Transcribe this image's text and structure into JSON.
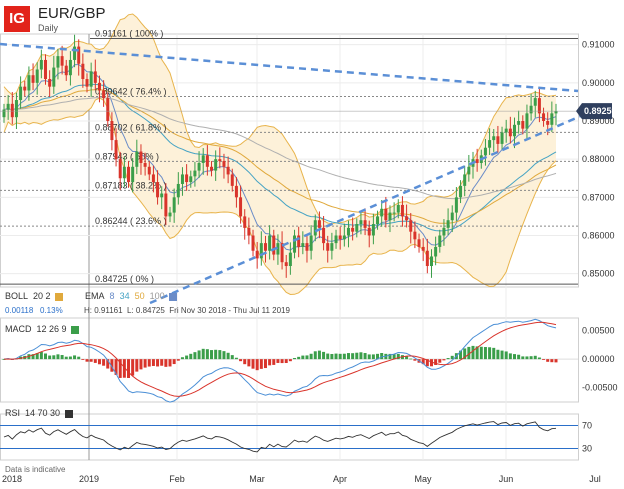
{
  "header": {
    "logo": "IG",
    "title": "EUR/GBP",
    "subtitle": "Daily"
  },
  "last_price": "0.89259",
  "boll": {
    "label": "BOLL",
    "params": "20 2",
    "value": "0.00118",
    "pct": "0.13%"
  },
  "ema": {
    "label": "EMA",
    "p1": "8",
    "p2": "34",
    "p3": "50",
    "p4": "100",
    "colors": [
      "#6a8cc8",
      "#45a3c4",
      "#e0a93c",
      "#b0b0b0"
    ]
  },
  "range_info": {
    "high": "H: 0.91161",
    "low": "L: 0.84725",
    "dates": "Fri Nov 30 2018 - Thu Jul 11 2019"
  },
  "disclaimer": "Data is indicative",
  "chart_data": {
    "type": "candlestick",
    "price_axis": {
      "ylim": [
        0.8465,
        0.9128
      ],
      "ticks": [
        "0.91000",
        "0.90000",
        "0.89000",
        "0.88000",
        "0.87000",
        "0.86000",
        "0.85000"
      ]
    },
    "time_axis": {
      "labels": [
        "2018",
        "2019",
        "Feb",
        "Mar",
        "Apr",
        "May",
        "Jun",
        "Jul"
      ]
    },
    "fibonacci": [
      {
        "label": "0.91161 ( 100% )",
        "value": 0.91161
      },
      {
        "label": "0.89642 ( 76.4% )",
        "value": 0.89642
      },
      {
        "label": "0.88702 ( 61.8% )",
        "value": 0.88702
      },
      {
        "label": "0.87943 ( 50% )",
        "value": 0.87943
      },
      {
        "label": "0.87183 ( 38.2% )",
        "value": 0.87183
      },
      {
        "label": "0.86244 ( 23.6% )",
        "value": 0.86244
      },
      {
        "label": "0.84725 ( 0% )",
        "value": 0.84725
      }
    ],
    "closes": [
      0.893,
      0.8945,
      0.891,
      0.8955,
      0.899,
      0.898,
      0.902,
      0.9,
      0.9035,
      0.906,
      0.901,
      0.899,
      0.904,
      0.907,
      0.9045,
      0.902,
      0.906,
      0.9095,
      0.905,
      0.901,
      0.899,
      0.903,
      0.9,
      0.898,
      0.896,
      0.89,
      0.885,
      0.88,
      0.875,
      0.878,
      0.874,
      0.878,
      0.882,
      0.879,
      0.878,
      0.876,
      0.874,
      0.87,
      0.871,
      0.865,
      0.866,
      0.87,
      0.8735,
      0.876,
      0.874,
      0.8755,
      0.877,
      0.879,
      0.881,
      0.878,
      0.877,
      0.88,
      0.8795,
      0.878,
      0.876,
      0.873,
      0.87,
      0.865,
      0.862,
      0.86,
      0.856,
      0.854,
      0.858,
      0.856,
      0.86,
      0.855,
      0.858,
      0.853,
      0.852,
      0.8555,
      0.86,
      0.857,
      0.858,
      0.856,
      0.86,
      0.864,
      0.862,
      0.858,
      0.856,
      0.858,
      0.86,
      0.859,
      0.86,
      0.862,
      0.861,
      0.863,
      0.864,
      0.862,
      0.86,
      0.863,
      0.865,
      0.867,
      0.864,
      0.866,
      0.866,
      0.868,
      0.865,
      0.864,
      0.861,
      0.859,
      0.857,
      0.856,
      0.852,
      0.8545,
      0.857,
      0.86,
      0.862,
      0.864,
      0.866,
      0.87,
      0.873,
      0.876,
      0.878,
      0.88,
      0.879,
      0.881,
      0.883,
      0.885,
      0.886,
      0.884,
      0.887,
      0.888,
      0.886,
      0.889,
      0.89,
      0.888,
      0.892,
      0.894,
      0.896,
      0.892,
      0.89,
      0.889,
      0.892,
      0.8926
    ],
    "macd": {
      "params": "12 26 9",
      "ticks": [
        "0.00500",
        "0.00000",
        "-0.00500"
      ],
      "ylim": [
        -0.0075,
        0.0072
      ]
    },
    "rsi": {
      "params": "14 70 30",
      "ticks": [
        "70",
        "30"
      ],
      "levels": [
        70,
        30
      ],
      "ylim": [
        10,
        90
      ]
    }
  }
}
